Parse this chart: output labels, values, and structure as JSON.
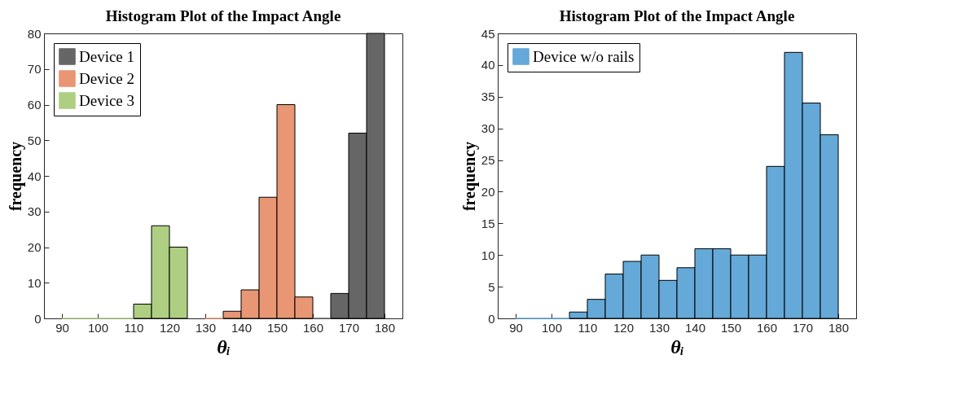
{
  "chart_data": [
    {
      "type": "histogram",
      "title": "Histogram Plot of the Impact Angle",
      "xlabel": "θᵢ",
      "ylabel": "frequency",
      "xlim": [
        85,
        185
      ],
      "xticks": [
        90,
        100,
        110,
        120,
        130,
        140,
        150,
        160,
        170,
        180
      ],
      "ylim": [
        0,
        80
      ],
      "yticks": [
        0,
        10,
        20,
        30,
        40,
        50,
        60,
        70,
        80
      ],
      "legend": "top left",
      "bins": [
        90,
        95,
        100,
        105,
        110,
        115,
        120,
        125,
        130,
        135,
        140,
        145,
        150,
        155,
        160,
        165,
        170,
        175,
        180
      ],
      "series": [
        {
          "name": "Device 1",
          "color": "#666666",
          "values": [
            null,
            null,
            null,
            null,
            null,
            null,
            null,
            null,
            null,
            null,
            null,
            null,
            null,
            null,
            0,
            7,
            52,
            80
          ]
        },
        {
          "name": "Device 2",
          "color": "#e89674",
          "values": [
            null,
            null,
            null,
            null,
            null,
            null,
            null,
            null,
            0,
            2,
            8,
            34,
            60,
            6,
            null,
            null,
            null,
            null
          ]
        },
        {
          "name": "Device 3",
          "color": "#aecf82",
          "values": [
            0,
            0,
            0,
            0,
            4,
            26,
            20,
            null,
            null,
            null,
            null,
            null,
            null,
            null,
            null,
            null,
            null,
            null
          ]
        }
      ]
    },
    {
      "type": "histogram",
      "title": "Histogram Plot of the Impact Angle",
      "xlabel": "θᵢ",
      "ylabel": "frequency",
      "xlim": [
        85,
        185
      ],
      "xticks": [
        90,
        100,
        110,
        120,
        130,
        140,
        150,
        160,
        170,
        180
      ],
      "ylim": [
        0,
        45
      ],
      "yticks": [
        0,
        5,
        10,
        15,
        20,
        25,
        30,
        35,
        40,
        45
      ],
      "legend": "top left",
      "bins": [
        90,
        95,
        100,
        105,
        110,
        115,
        120,
        125,
        130,
        135,
        140,
        145,
        150,
        155,
        160,
        165,
        170,
        175,
        180
      ],
      "series": [
        {
          "name": "Device w/o rails",
          "color": "#64a9d8",
          "values": [
            0,
            0,
            0,
            1,
            3,
            7,
            9,
            10,
            6,
            8,
            11,
            11,
            10,
            10,
            24,
            42,
            34,
            29
          ]
        }
      ]
    }
  ]
}
